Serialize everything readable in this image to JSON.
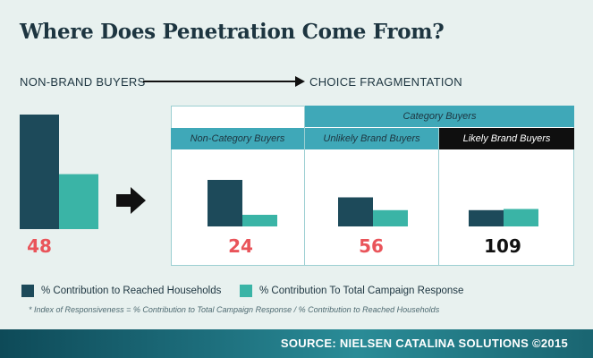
{
  "title": "Where Does Penetration Come From?",
  "flow": {
    "left_label": "NON-BRAND BUYERS",
    "right_label": "CHOICE FRAGMENTATION"
  },
  "panel": {
    "category_header": "Category Buyers",
    "headers": [
      "Non-Category Buyers",
      "Unlikely Brand Buyers",
      "Likely Brand Buyers"
    ]
  },
  "legend": {
    "reached": "% Contribution to Reached Households",
    "response": "% Contribution To Total Campaign Response"
  },
  "footnote": "* Index of Responsiveness = % Contribution to Total Campaign Response / % Contribution to Reached Households",
  "source": "SOURCE:  NIELSEN CATALINA SOLUTIONS  ©2015",
  "colors": {
    "reached": "#1d4a5a",
    "response": "#3ab4a6",
    "index_highlight": "#e9545a",
    "index_dark": "#111111",
    "header": "#3fa8b8"
  },
  "chart_data": {
    "type": "bar",
    "categories": [
      "Non-Brand Buyers",
      "Non-Category Buyers",
      "Unlikely Brand Buyers",
      "Likely Brand Buyers"
    ],
    "series": [
      {
        "name": "% Contribution to Reached Households",
        "values": [
          100,
          40,
          25,
          14
        ]
      },
      {
        "name": "% Contribution To Total Campaign Response",
        "values": [
          48,
          10,
          14,
          15
        ]
      }
    ],
    "index_values": [
      "48",
      "24",
      "56",
      "109"
    ],
    "ylim": [
      0,
      100
    ],
    "title": "Where Does Penetration Come From?",
    "xlabel": "",
    "ylabel": "",
    "grid": false,
    "legend": "bottom"
  }
}
